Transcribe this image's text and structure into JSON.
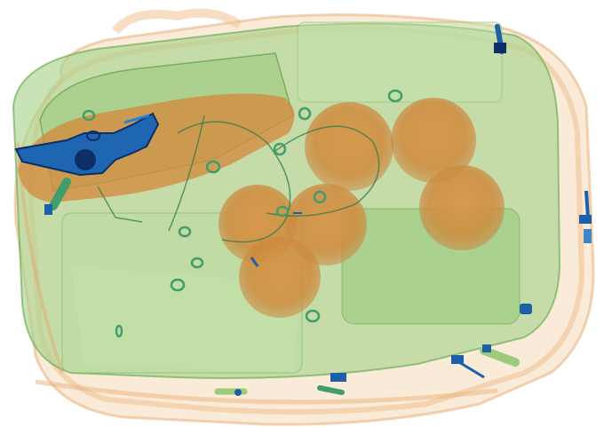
{
  "image": {
    "kind": "x-ray baggage scan",
    "palette": {
      "background": "#ffffff",
      "organic_light": "#f2c79c",
      "organic_dense": "#d98b3a",
      "inorganic": "#9ccb7a",
      "inorganic_dark": "#5f9d4a",
      "metal": "#1d5fa8",
      "metal_dark": "#0d2f66",
      "ring": "#3f9e6a"
    },
    "objects": [
      {
        "name": "bag-body",
        "icon": "bag"
      },
      {
        "name": "bread-loaf",
        "icon": "organic-mass"
      },
      {
        "name": "orange",
        "icon": "round-fruit"
      },
      {
        "name": "revolver",
        "icon": "gun"
      },
      {
        "name": "zipper-pull",
        "icon": "metal-tab"
      },
      {
        "name": "key-ring",
        "icon": "ring"
      }
    ]
  }
}
